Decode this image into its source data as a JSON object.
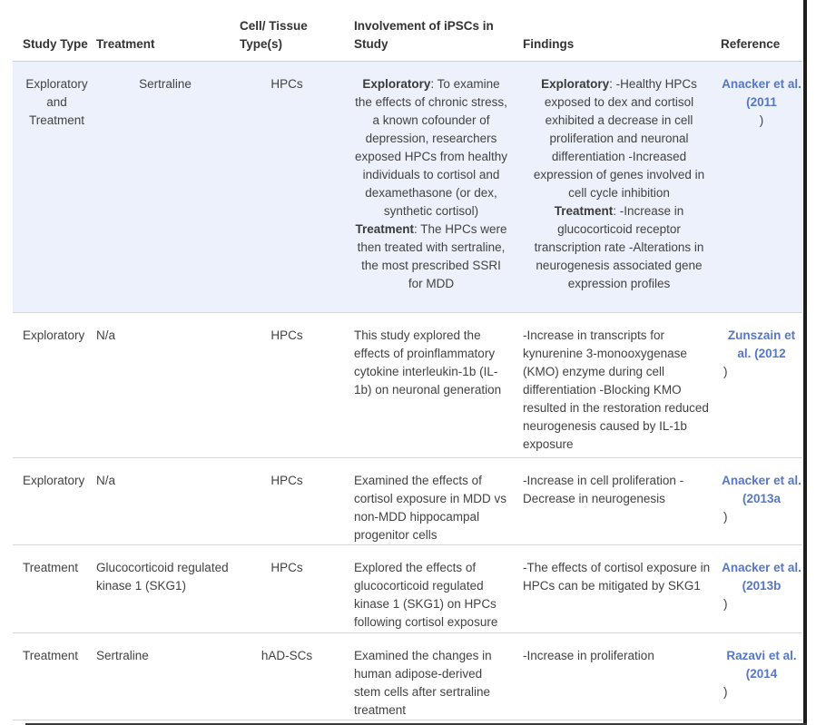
{
  "page": {
    "accent_link_color": "#5577c5",
    "row_highlight_color": "#edf1fb"
  },
  "table": {
    "headers": [
      "Study Type",
      "Treatment",
      "Cell/ Tissue Type(s)",
      "Involvement of iPSCs in Study",
      "Findings",
      "Reference"
    ],
    "rows": [
      {
        "study_type": "Exploratory and Treatment",
        "treatment": "Sertraline",
        "cell_tissue": "HPCs",
        "involvement_segments": [
          {
            "label": "Exploratory",
            "text": ": To examine the effects of chronic stress, a known cofounder of depression, researchers exposed HPCs from healthy individuals to cortisol and dexamethasone (or dex, synthetic cortisol)"
          },
          {
            "label": "Treatment",
            "text": ": The HPCs were then treated with sertraline, the most prescribed SSRI for MDD"
          }
        ],
        "findings_segments": [
          {
            "label": "Exploratory",
            "text": ": -Healthy HPCs exposed to dex and cortisol exhibited a decrease in cell proliferation and neuronal differentiation -Increased expression of genes involved in cell cycle inhibition"
          },
          {
            "label": "Treatment",
            "text": ": -Increase in glucocorticoid receptor transcription rate -Alterations in neurogenesis associated gene expression profiles"
          }
        ],
        "reference": {
          "link": "Anacker et al. (2011",
          "suffix": ")"
        }
      },
      {
        "study_type": "Exploratory",
        "treatment": "N/a",
        "cell_tissue": "HPCs",
        "involvement": "This study explored the effects of proinflammatory cytokine interleukin-1b (IL-1b) on neuronal generation",
        "findings": "-Increase in transcripts for kynurenine 3-monooxygenase (KMO) enzyme during cell differentiation -Blocking KMO resulted in the restoration reduced neurogenesis caused by IL-1b exposure",
        "reference": {
          "link": "Zunszain et al. (2012",
          "suffix": ")"
        }
      },
      {
        "study_type": "Exploratory",
        "treatment": "N/a",
        "cell_tissue": "HPCs",
        "involvement": "Examined the effects of cortisol exposure in MDD vs non-MDD hippocampal progenitor cells",
        "findings": "-Increase in cell proliferation -Decrease in neurogenesis",
        "reference": {
          "link": "Anacker et al. (2013a",
          "suffix": ")"
        }
      },
      {
        "study_type": "Treatment",
        "treatment": "Glucocorticoid regulated kinase 1 (SKG1)",
        "cell_tissue": "HPCs",
        "involvement": "Explored the effects of glucocorticoid regulated kinase 1 (SKG1) on HPCs following cortisol exposure",
        "findings": "-The effects of cortisol exposure in HPCs can be mitigated by SKG1",
        "reference": {
          "link": "Anacker et al. (2013b",
          "suffix": ")"
        }
      },
      {
        "study_type": "Treatment",
        "treatment": "Sertraline",
        "cell_tissue": "hAD-SCs",
        "involvement": "Examined the changes in human adipose-derived stem cells after sertraline treatment",
        "findings": "-Increase in proliferation",
        "reference": {
          "link": "Razavi et al. (2014",
          "suffix": ")"
        }
      }
    ]
  }
}
